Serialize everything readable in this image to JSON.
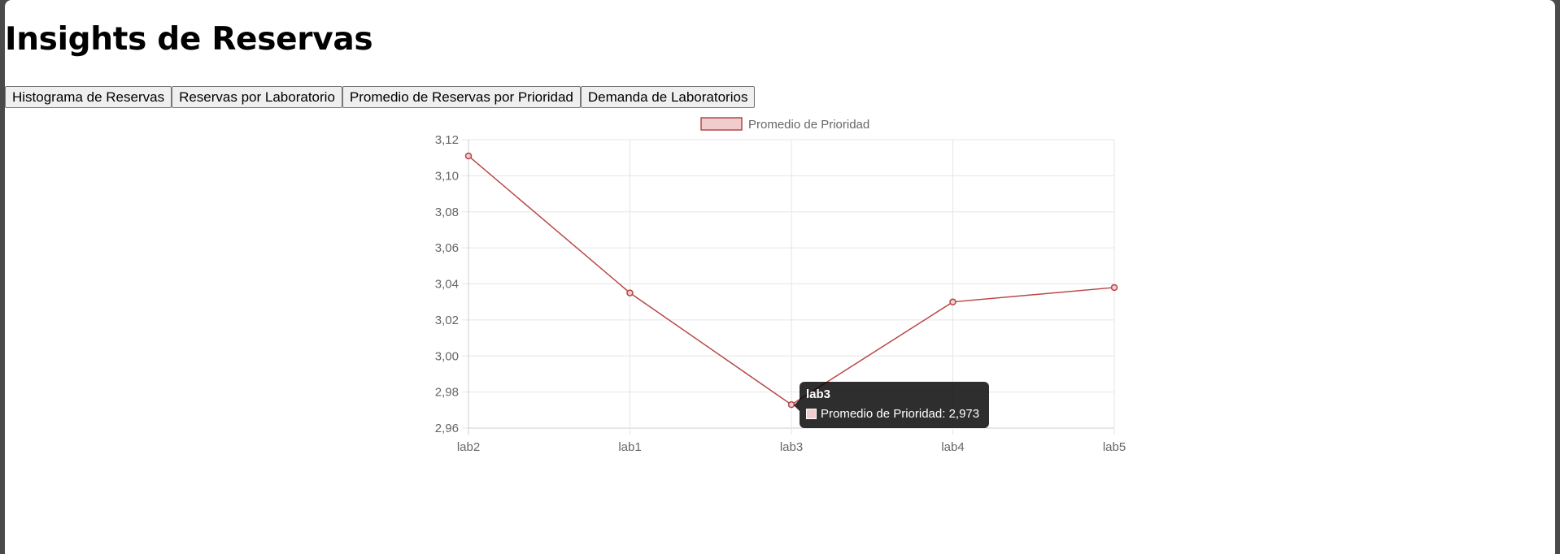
{
  "page": {
    "title": "Insights de Reservas"
  },
  "tabs": [
    {
      "label": "Histograma de Reservas"
    },
    {
      "label": "Reservas por Laboratorio"
    },
    {
      "label": "Promedio de Reservas por Prioridad"
    },
    {
      "label": "Demanda de Laboratorios"
    }
  ],
  "chart_data": {
    "type": "line",
    "categories": [
      "lab2",
      "lab1",
      "lab3",
      "lab4",
      "lab5"
    ],
    "series": [
      {
        "name": "Promedio de Prioridad",
        "values": [
          3.111,
          3.035,
          2.973,
          3.03,
          3.038
        ],
        "color": "#b84646",
        "fill_color": "#f0cccf"
      }
    ],
    "ylim": [
      2.96,
      3.12
    ],
    "yticks": [
      "3,12",
      "3,10",
      "3,08",
      "3,06",
      "3,04",
      "3,02",
      "3,00",
      "2,98",
      "2,96"
    ],
    "grid": true,
    "legend": "top"
  },
  "tooltip": {
    "title": "lab3",
    "body": "Promedio de Prioridad: 2,973"
  },
  "colors": {
    "grid": "#e5e5e5",
    "tick_text": "#666666",
    "line": "#b84646"
  }
}
